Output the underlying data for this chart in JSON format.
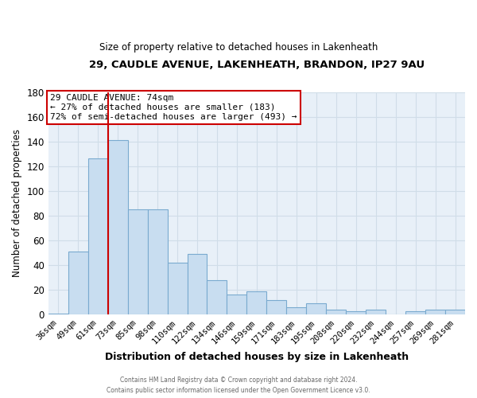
{
  "title1": "29, CAUDLE AVENUE, LAKENHEATH, BRANDON, IP27 9AU",
  "title2": "Size of property relative to detached houses in Lakenheath",
  "xlabel": "Distribution of detached houses by size in Lakenheath",
  "ylabel": "Number of detached properties",
  "categories": [
    "36sqm",
    "49sqm",
    "61sqm",
    "73sqm",
    "85sqm",
    "98sqm",
    "110sqm",
    "122sqm",
    "134sqm",
    "146sqm",
    "159sqm",
    "171sqm",
    "183sqm",
    "195sqm",
    "208sqm",
    "220sqm",
    "232sqm",
    "244sqm",
    "257sqm",
    "269sqm",
    "281sqm"
  ],
  "values": [
    1,
    51,
    126,
    141,
    85,
    85,
    42,
    49,
    28,
    16,
    19,
    12,
    6,
    9,
    4,
    3,
    4,
    0,
    3,
    4,
    4
  ],
  "bar_color": "#c8ddf0",
  "bar_edge_color": "#7aaacf",
  "vline_x_index": 3,
  "vline_color": "#cc0000",
  "ylim": [
    0,
    180
  ],
  "yticks": [
    0,
    20,
    40,
    60,
    80,
    100,
    120,
    140,
    160,
    180
  ],
  "annotation_title": "29 CAUDLE AVENUE: 74sqm",
  "annotation_line1": "← 27% of detached houses are smaller (183)",
  "annotation_line2": "72% of semi-detached houses are larger (493) →",
  "annotation_box_color": "#ffffff",
  "annotation_box_edge_color": "#cc0000",
  "footer1": "Contains HM Land Registry data © Crown copyright and database right 2024.",
  "footer2": "Contains public sector information licensed under the Open Government Licence v3.0.",
  "background_color": "#ffffff",
  "grid_color": "#d0dde8",
  "plot_bg_color": "#e8f0f8"
}
